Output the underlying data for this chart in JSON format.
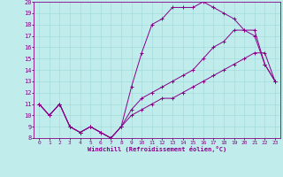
{
  "xlabel": "Windchill (Refroidissement éolien,°C)",
  "xlim": [
    -0.5,
    23.5
  ],
  "ylim": [
    8,
    20
  ],
  "xticks": [
    0,
    1,
    2,
    3,
    4,
    5,
    6,
    7,
    8,
    9,
    10,
    11,
    12,
    13,
    14,
    15,
    16,
    17,
    18,
    19,
    20,
    21,
    22,
    23
  ],
  "yticks": [
    8,
    9,
    10,
    11,
    12,
    13,
    14,
    15,
    16,
    17,
    18,
    19,
    20
  ],
  "background_color": "#c0ecec",
  "grid_color": "#9ed8d8",
  "line_color": "#880088",
  "line1_x": [
    0,
    1,
    2,
    3,
    4,
    5,
    6,
    7,
    8,
    9,
    10,
    11,
    12,
    13,
    14,
    15,
    16,
    17,
    18,
    19,
    20,
    21,
    22,
    23
  ],
  "line1_y": [
    11,
    10,
    11,
    9,
    8.5,
    9,
    8.5,
    8,
    9,
    12.5,
    15.5,
    18,
    18.5,
    19.5,
    19.5,
    19.5,
    20,
    19.5,
    19,
    18.5,
    17.5,
    17,
    14.5,
    13
  ],
  "line2_x": [
    0,
    1,
    2,
    3,
    4,
    5,
    6,
    7,
    8,
    9,
    10,
    11,
    12,
    13,
    14,
    15,
    16,
    17,
    18,
    19,
    20,
    21,
    22,
    23
  ],
  "line2_y": [
    11,
    10,
    11,
    9,
    8.5,
    9,
    8.5,
    8,
    9,
    10.5,
    11.5,
    12,
    12.5,
    13,
    13.5,
    14,
    15,
    16,
    16.5,
    17.5,
    17.5,
    17.5,
    14.5,
    13
  ],
  "line3_x": [
    0,
    1,
    2,
    3,
    4,
    5,
    6,
    7,
    8,
    9,
    10,
    11,
    12,
    13,
    14,
    15,
    16,
    17,
    18,
    19,
    20,
    21,
    22,
    23
  ],
  "line3_y": [
    11,
    10,
    11,
    9,
    8.5,
    9,
    8.5,
    8,
    9,
    10,
    10.5,
    11,
    11.5,
    11.5,
    12,
    12.5,
    13,
    13.5,
    14,
    14.5,
    15,
    15.5,
    15.5,
    13
  ],
  "markersize": 2.5
}
